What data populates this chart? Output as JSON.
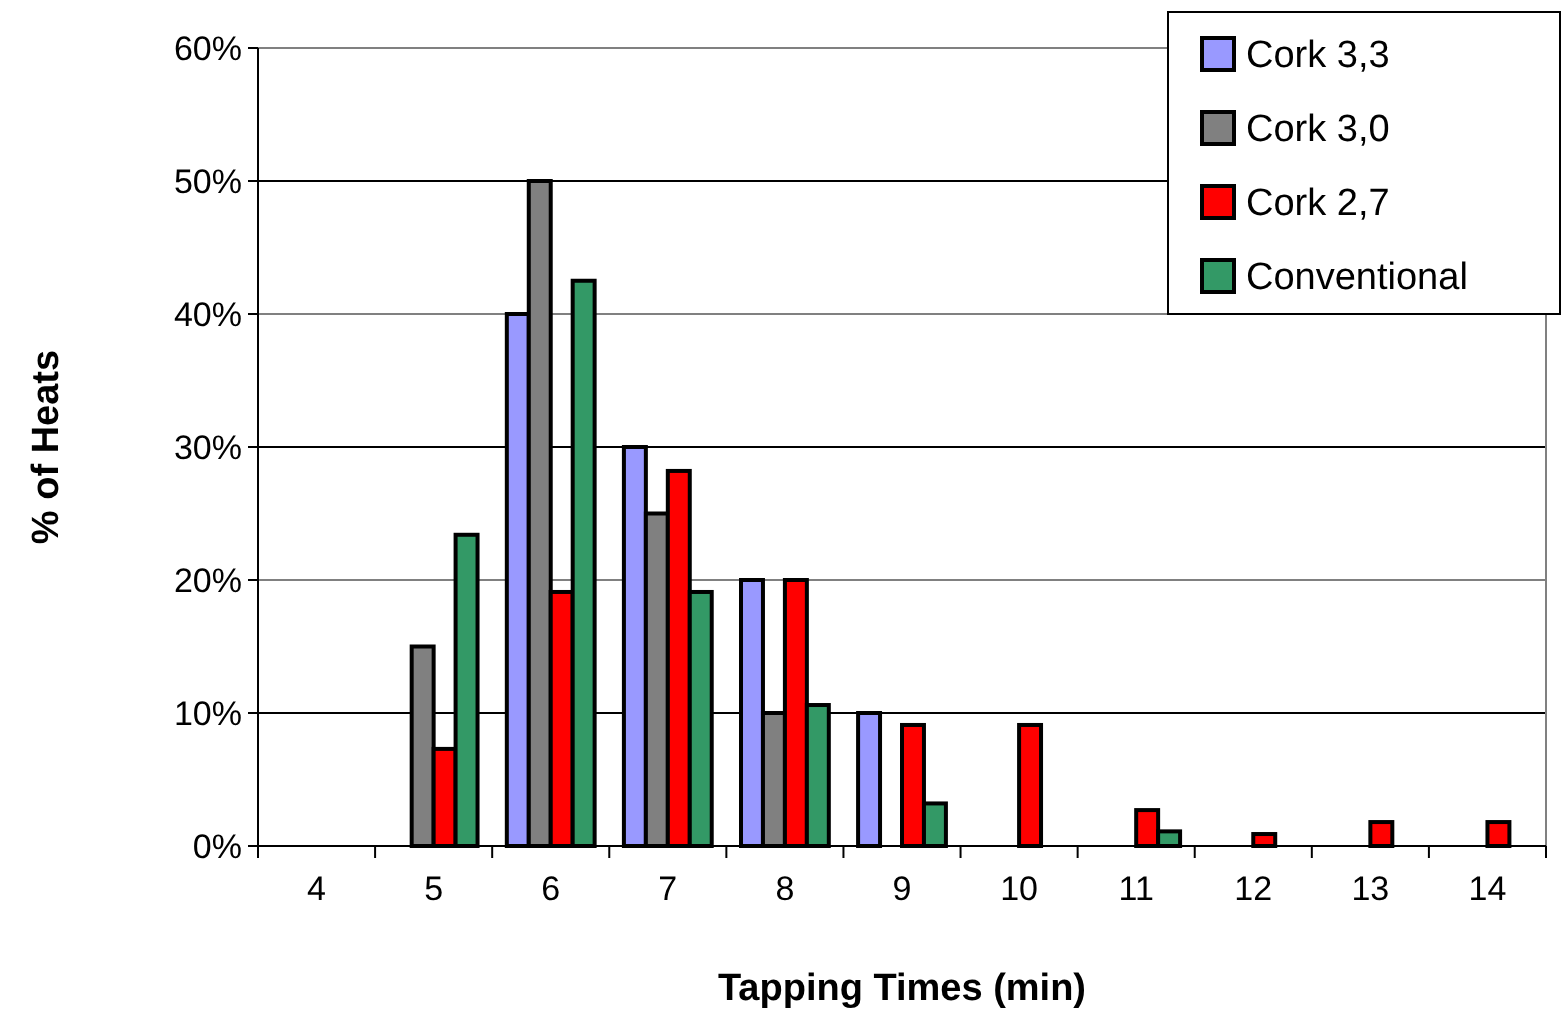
{
  "chart_data": {
    "type": "bar",
    "xlabel": "Tapping Times (min)",
    "ylabel": "% of Heats",
    "categories": [
      "4",
      "5",
      "6",
      "7",
      "8",
      "9",
      "10",
      "11",
      "12",
      "13",
      "14"
    ],
    "series": [
      {
        "name": "Cork 3,3",
        "color": "#9999ff",
        "values": [
          null,
          null,
          40,
          30,
          20,
          10,
          null,
          null,
          null,
          null,
          null
        ]
      },
      {
        "name": "Cork 3,0",
        "color": "#808080",
        "values": [
          null,
          15,
          50,
          25,
          10,
          null,
          null,
          null,
          null,
          null,
          null
        ]
      },
      {
        "name": "Cork 2,7",
        "color": "#ff0000",
        "values": [
          null,
          7.3,
          19.1,
          28.2,
          20,
          9.1,
          9.1,
          2.7,
          0.9,
          1.8,
          1.8
        ]
      },
      {
        "name": "Conventional",
        "color": "#339966",
        "values": [
          null,
          23.4,
          42.5,
          19.1,
          10.6,
          3.2,
          null,
          1.1,
          null,
          null,
          null
        ]
      }
    ],
    "ylim": [
      0,
      60
    ],
    "yticks": [
      {
        "value": 0,
        "label": "0%"
      },
      {
        "value": 10,
        "label": "10%"
      },
      {
        "value": 20,
        "label": "20%"
      },
      {
        "value": 30,
        "label": "30%"
      },
      {
        "value": 40,
        "label": "40%"
      },
      {
        "value": 50,
        "label": "50%"
      },
      {
        "value": 60,
        "label": "60%"
      }
    ],
    "grid": "y",
    "legend": "top right"
  }
}
